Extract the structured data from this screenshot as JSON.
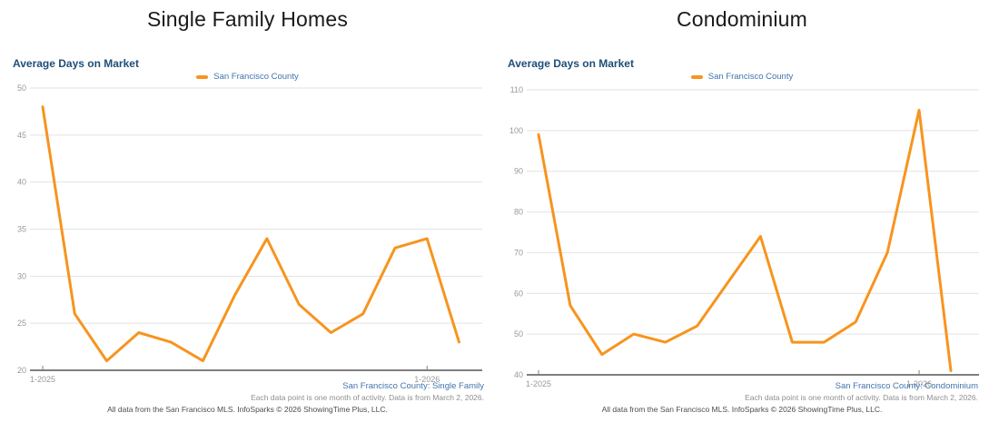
{
  "footnotes": {
    "note": "Each data point is one month of activity. Data is from March 2, 2026.",
    "copyright": "All data from the San Francisco MLS. InfoSparks © 2026 ShowingTime Plus, LLC."
  },
  "colors": {
    "line_orange": "#F7941E",
    "header_navy": "#1F4E79",
    "caption_blue": "#3F74AE",
    "tick_gray": "#999999",
    "gridline_gray": "#E2E2E2",
    "axis_gray": "#7F7F7F"
  },
  "chart_data": [
    {
      "type": "line",
      "panel_title": "Single Family Homes",
      "title": "Average Days on Market",
      "legend_position": "top-center",
      "grid": true,
      "x": [
        "1-2025",
        "2-2025",
        "3-2025",
        "4-2025",
        "5-2025",
        "6-2025",
        "7-2025",
        "8-2025",
        "9-2025",
        "10-2025",
        "11-2025",
        "12-2025",
        "1-2026",
        "2-2026"
      ],
      "series": [
        {
          "name": "San Francisco County",
          "values": [
            48,
            26,
            21,
            24,
            23,
            21,
            28,
            34,
            27,
            24,
            26,
            33,
            34,
            23
          ]
        }
      ],
      "ylim": [
        20,
        50
      ],
      "ytick_step": 5,
      "xticks_shown": {
        "labels": [
          "1-2025",
          "1-2026"
        ],
        "indices": [
          0,
          12
        ]
      },
      "series_caption": "San Francisco County: Single Family"
    },
    {
      "type": "line",
      "panel_title": "Condominium",
      "title": "Average Days on Market",
      "legend_position": "top-center",
      "grid": true,
      "x": [
        "1-2025",
        "2-2025",
        "3-2025",
        "4-2025",
        "5-2025",
        "6-2025",
        "7-2025",
        "8-2025",
        "9-2025",
        "10-2025",
        "11-2025",
        "12-2025",
        "1-2026",
        "2-2026"
      ],
      "series": [
        {
          "name": "San Francisco County",
          "values": [
            99,
            57,
            45,
            50,
            48,
            52,
            63,
            74,
            48,
            48,
            53,
            70,
            105,
            41
          ]
        }
      ],
      "ylim": [
        40,
        110
      ],
      "ytick_step": 10,
      "xticks_shown": {
        "labels": [
          "1-2025",
          "1-2026"
        ],
        "indices": [
          0,
          12
        ]
      },
      "series_caption": "San Francisco County: Condominium"
    }
  ]
}
